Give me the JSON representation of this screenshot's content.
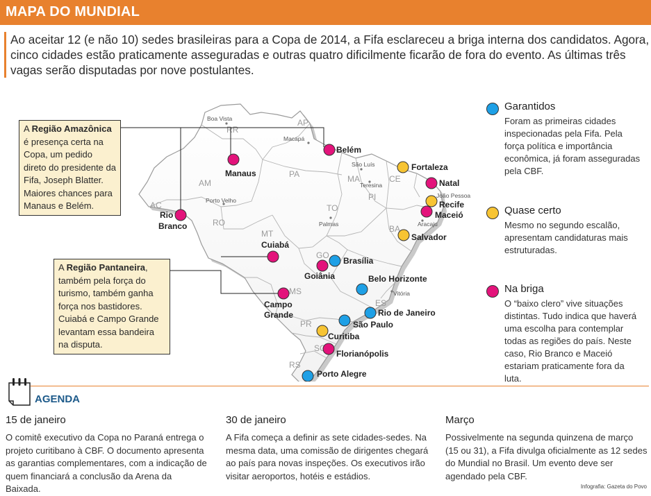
{
  "header": {
    "title": "MAPA DO MUNDIAL"
  },
  "intro": "Ao aceitar 12 (e não 10) sedes brasileiras para a Copa de 2014, a Fifa esclareceu a briga interna dos candidatos. Agora, cinco cidades estão praticamente asseguradas e outras quatro dificilmente ficarão de fora do evento. As últimas três vagas serão disputadas por nove postulantes.",
  "colors": {
    "accent": "#e8812e",
    "garantidos": "#1ea0e6",
    "quase_certo": "#f7c433",
    "na_briga": "#e3137b",
    "callout_bg": "#fbf0cf",
    "agenda_title": "#1d5a8a"
  },
  "callouts": {
    "amazonica": {
      "prefix": "A ",
      "bold": "Região Amazônica",
      "text": "é presença certa na Copa, um pedido direto do presidente da Fifa, Joseph Blatter. Maiores chances para Manaus e Belém."
    },
    "pantaneira": {
      "prefix": "A ",
      "bold": "Região Pantaneira",
      "text": ", também pela força do turismo, também ganha força nos bastidores. Cuiabá e Campo Grande levantam essa bandeira na disputa."
    }
  },
  "legend": [
    {
      "status": "garantidos",
      "title": "Garantidos",
      "text": "Foram as primeiras cidades inspecionadas pela Fifa. Pela força política e importância econômica, já foram asseguradas pela CBF."
    },
    {
      "status": "quase_certo",
      "title": "Quase certo",
      "text": " Mesmo no segundo escalão, apresentam candidaturas mais estruturadas."
    },
    {
      "status": "na_briga",
      "title": "Na briga",
      "text": "O “baixo clero” vive situações distintas. Tudo indica que haverá uma escolha para contemplar todas as regiões do país. Neste caso, Rio Branco e Maceió estariam praticamente fora da luta."
    }
  ],
  "map": {
    "states": [
      "RR",
      "AP",
      "AM",
      "PA",
      "MA",
      "CE",
      "PI",
      "AC",
      "RO",
      "TO",
      "MT",
      "GO",
      "MS",
      "PR",
      "SC",
      "RS",
      "BA",
      "ES"
    ],
    "minor_cities": [
      "Boa Vista",
      "Macapá",
      "São Luís",
      "Teresina",
      "João Pessoa",
      "Aracaju",
      "Porto Velho",
      "Palmas",
      "Vitória"
    ],
    "host_cities": [
      {
        "name": "Belém",
        "status": "na_briga"
      },
      {
        "name": "Manaus",
        "status": "na_briga"
      },
      {
        "name": "Fortaleza",
        "status": "quase_certo"
      },
      {
        "name": "Natal",
        "status": "na_briga"
      },
      {
        "name": "Recife",
        "status": "quase_certo"
      },
      {
        "name": "Maceió",
        "status": "na_briga"
      },
      {
        "name": "Salvador",
        "status": "quase_certo"
      },
      {
        "name": "Rio Branco",
        "status": "na_briga"
      },
      {
        "name": "Cuiabá",
        "status": "na_briga"
      },
      {
        "name": "Brasília",
        "status": "garantidos"
      },
      {
        "name": "Goiânia",
        "status": "na_briga"
      },
      {
        "name": "Belo Horizonte",
        "status": "garantidos"
      },
      {
        "name": "Campo Grande",
        "status": "na_briga"
      },
      {
        "name": "Rio de Janeiro",
        "status": "garantidos"
      },
      {
        "name": "São Paulo",
        "status": "garantidos"
      },
      {
        "name": "Curitiba",
        "status": "quase_certo"
      },
      {
        "name": "Florianópolis",
        "status": "na_briga"
      },
      {
        "name": "Porto Alegre",
        "status": "garantidos"
      }
    ]
  },
  "agenda": {
    "title": "AGENDA",
    "items": [
      {
        "date": "15 de janeiro",
        "text": "O comitê executivo da Copa no Paraná entrega o projeto curitibano à CBF. O documento apresenta as garantias complementares, com a indicação de quem financiará a conclusão da Arena da Baixada."
      },
      {
        "date": "30 de janeiro",
        "text": "A Fifa começa a definir as sete cidades-sedes. Na mesma data, uma comissão de dirigentes chegará ao país para novas inspeções. Os executivos irão visitar aeroportos, hotéis e estádios."
      },
      {
        "date": "Março",
        "text": "Possivelmente na segunda quinzena de março (15 ou 31), a Fifa divulga oficialmente as 12 sedes do Mundial no Brasil. Um evento deve ser agendado pela CBF."
      }
    ]
  },
  "credit": "Infografia: Gazeta do Povo"
}
